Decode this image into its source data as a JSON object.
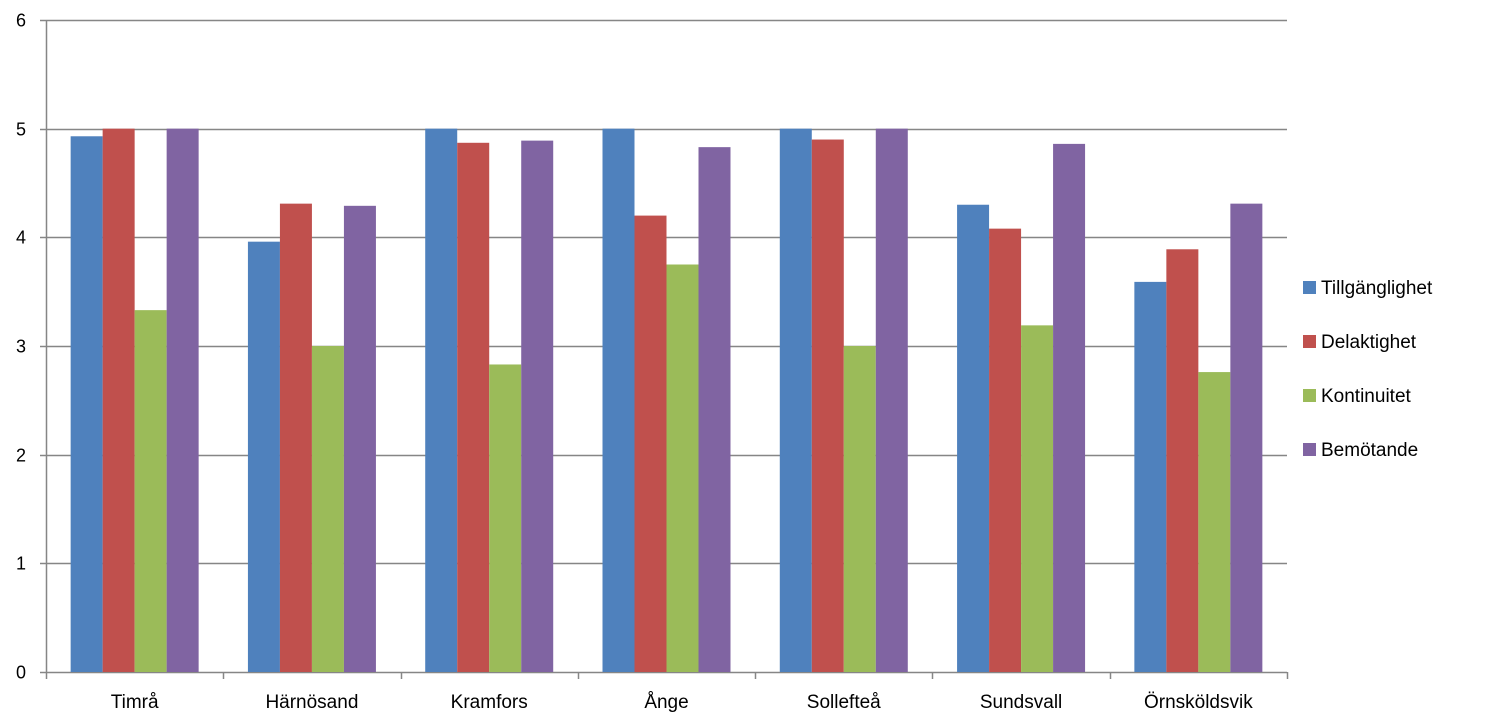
{
  "chart_data": {
    "type": "bar",
    "title": "",
    "xlabel": "",
    "ylabel": "",
    "ylim": [
      0,
      6
    ],
    "yticks": [
      0,
      1,
      2,
      3,
      4,
      5,
      6
    ],
    "grid": true,
    "legend_position": "right",
    "categories": [
      "Timrå",
      "Härnösand",
      "Kramfors",
      "Ånge",
      "Sollefteå",
      "Sundsvall",
      "Örnsköldsvik"
    ],
    "series": [
      {
        "name": "Tillgänglighet",
        "color": "#4F81BD",
        "values": [
          4.93,
          3.96,
          5.0,
          5.0,
          5.0,
          4.3,
          3.59
        ]
      },
      {
        "name": "Delaktighet",
        "color": "#C0504D",
        "values": [
          5.0,
          4.31,
          4.87,
          4.2,
          4.9,
          4.08,
          3.89
        ]
      },
      {
        "name": "Kontinuitet",
        "color": "#9BBB59",
        "values": [
          3.33,
          3.0,
          2.83,
          3.75,
          3.0,
          3.19,
          2.76
        ]
      },
      {
        "name": "Bemötande",
        "color": "#8064A2",
        "values": [
          5.0,
          4.29,
          4.89,
          4.83,
          5.0,
          4.86,
          4.31
        ]
      }
    ]
  }
}
